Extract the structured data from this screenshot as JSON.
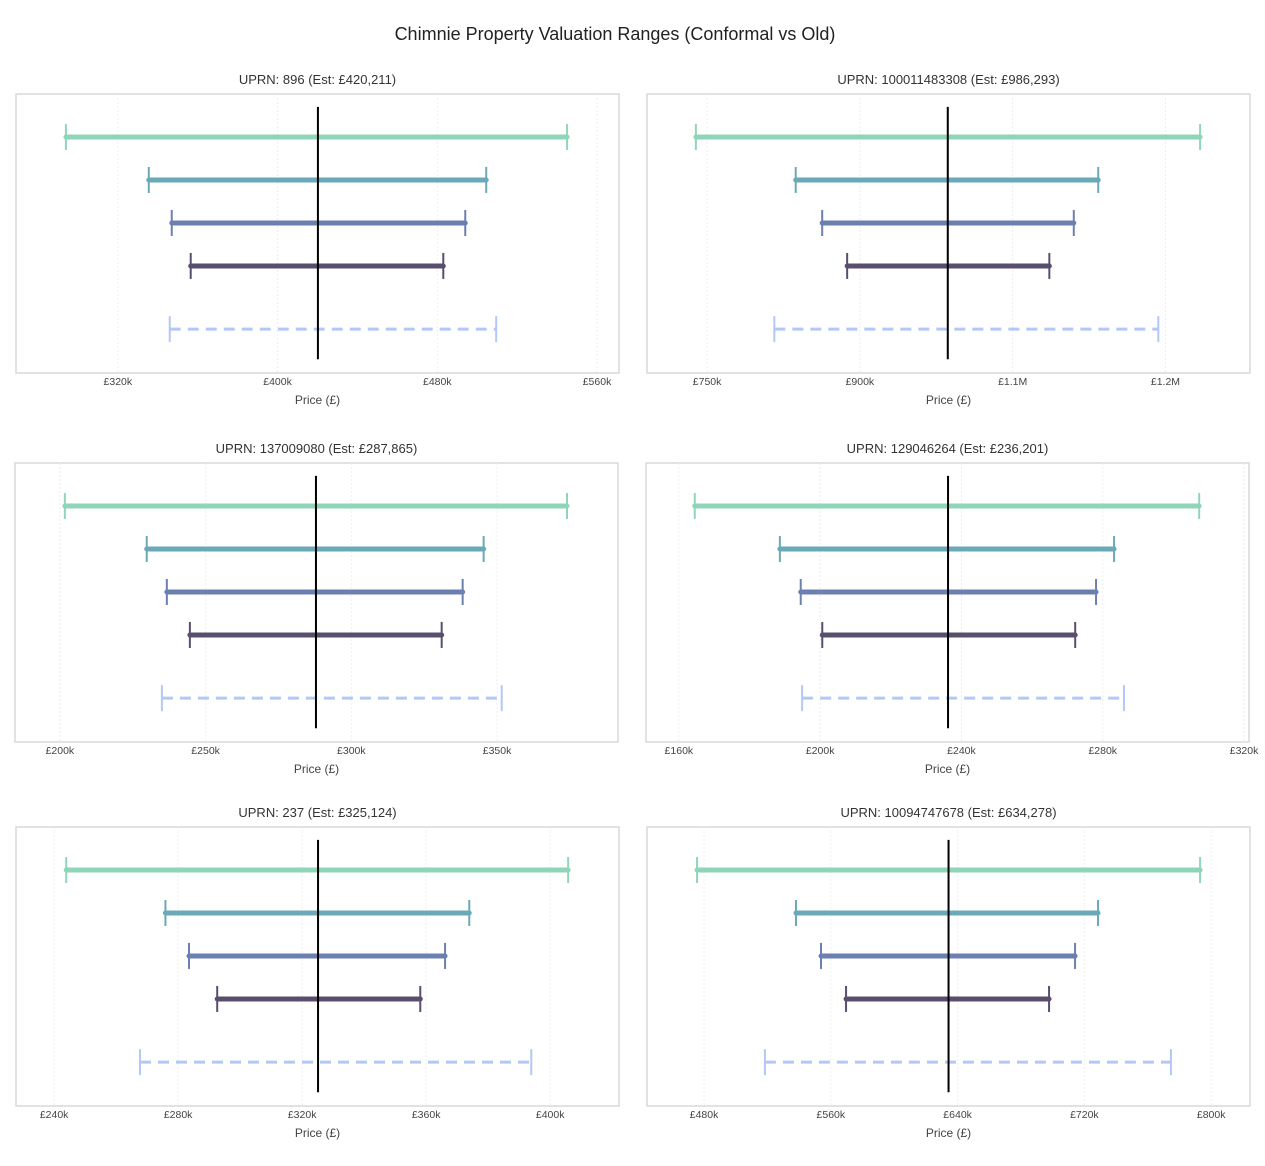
{
  "title": "Chimnie Property Valuation Ranges (Conformal vs Old)",
  "colors": {
    "intervals": [
      "#8fd6b9",
      "#6aaab8",
      "#6b80b0",
      "#5a4e6e"
    ],
    "old": "#b4c8f5",
    "estimate": "#000000",
    "grid": "#eeeeee",
    "frame": "#d9d9d9"
  },
  "chart_data": [
    {
      "type": "interval",
      "title": "UPRN: 896 (Est: £420,211)",
      "xlabel": "Price (£)",
      "estimate": 420.211,
      "xlim": [
        269,
        571
      ],
      "ticks": [
        320,
        400,
        480,
        560
      ],
      "tick_labels": [
        "£320k",
        "£400k",
        "£480k",
        "£560k"
      ],
      "intervals": [
        [
          294,
          545
        ],
        [
          335.5,
          504.5
        ],
        [
          347,
          494
        ],
        [
          356.5,
          483
        ]
      ],
      "old": [
        346,
        509.5
      ],
      "grid": true
    },
    {
      "type": "interval",
      "title": "UPRN: 100011483308 (Est: £986,293)",
      "xlabel": "Price (£)",
      "estimate": 986.293,
      "xlim": [
        691,
        1283
      ],
      "ticks": [
        750,
        900,
        1050,
        1200
      ],
      "tick_labels": [
        "£750k",
        "£900k",
        "£1.1M",
        "£1.2M"
      ],
      "intervals": [
        [
          739,
          1234
        ],
        [
          837,
          1134
        ],
        [
          863,
          1110
        ],
        [
          887.5,
          1086
        ]
      ],
      "old": [
        816,
        1193
      ],
      "grid": true
    },
    {
      "type": "interval",
      "title": "UPRN: 137009080 (Est: £287,865)",
      "xlabel": "Price (£)",
      "estimate": 287.865,
      "xlim": [
        184.6,
        391.5
      ],
      "ticks": [
        200,
        250,
        300,
        350
      ],
      "tick_labels": [
        "£200k",
        "£250k",
        "£300k",
        "£350k"
      ],
      "intervals": [
        [
          201.7,
          374
        ],
        [
          229.8,
          345.4
        ],
        [
          236.7,
          338.2
        ],
        [
          244.6,
          331
        ]
      ],
      "old": [
        235,
        351.6
      ],
      "grid": true
    },
    {
      "type": "interval",
      "title": "UPRN: 129046264 (Est: £236,201)",
      "xlabel": "Price (£)",
      "estimate": 236.201,
      "xlim": [
        150.7,
        321.4
      ],
      "ticks": [
        160,
        200,
        240,
        280,
        320
      ],
      "tick_labels": [
        "£160k",
        "£200k",
        "£240k",
        "£280k",
        "£320k"
      ],
      "intervals": [
        [
          164.5,
          307.3
        ],
        [
          188.6,
          283.2
        ],
        [
          194.5,
          278.1
        ],
        [
          200.6,
          272.2
        ]
      ],
      "old": [
        194.9,
        286
      ],
      "grid": true
    },
    {
      "type": "interval",
      "title": "UPRN: 237 (Est: £325,124)",
      "xlabel": "Price (£)",
      "estimate": 325.124,
      "xlim": [
        227.7,
        422.2
      ],
      "ticks": [
        240,
        280,
        320,
        360,
        400
      ],
      "tick_labels": [
        "£240k",
        "£280k",
        "£320k",
        "£360k",
        "£400k"
      ],
      "intervals": [
        [
          243.9,
          405.8
        ],
        [
          275.9,
          373.9
        ],
        [
          283.5,
          366.1
        ],
        [
          292.6,
          358.1
        ]
      ],
      "old": [
        267.7,
        393.9
      ],
      "grid": true
    },
    {
      "type": "interval",
      "title": "UPRN: 10094747678 (Est: £634,278)",
      "xlabel": "Price (£)",
      "estimate": 634.278,
      "xlim": [
        444,
        824.5
      ],
      "ticks": [
        480,
        560,
        640,
        720,
        800
      ],
      "tick_labels": [
        "£480k",
        "£560k",
        "£640k",
        "£720k",
        "£800k"
      ],
      "intervals": [
        [
          475.6,
          793
        ],
        [
          538,
          728.6
        ],
        [
          553.8,
          714.1
        ],
        [
          569.6,
          697.7
        ]
      ],
      "old": [
        518.4,
        774.6
      ],
      "grid": true
    }
  ]
}
